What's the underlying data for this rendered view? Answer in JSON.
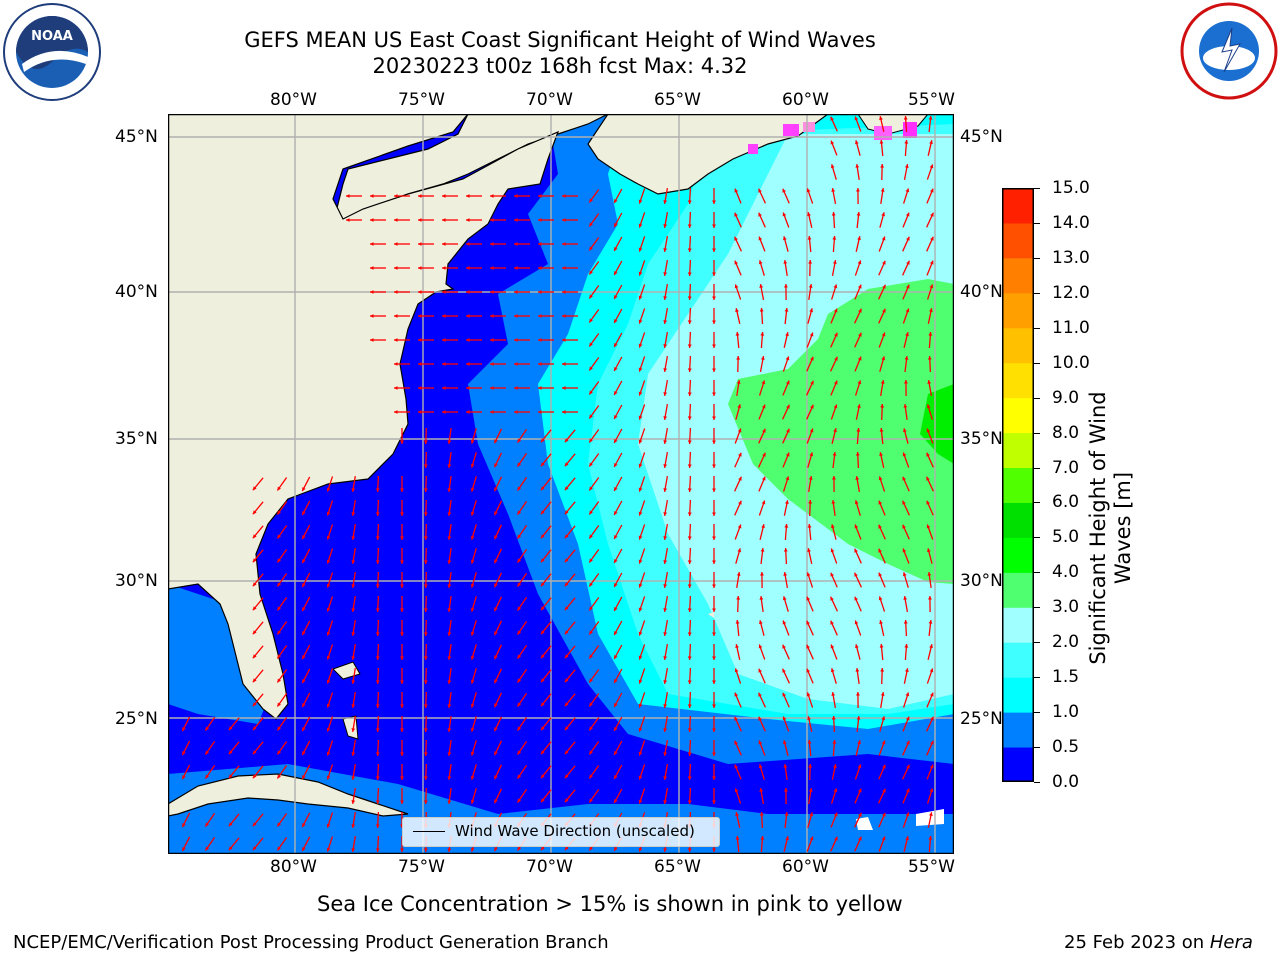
{
  "header": {
    "title_line1": "GEFS MEAN US East Coast Significant Height of Wind Waves",
    "title_line2": "20230223 t00z 168h fcst   Max: 4.32"
  },
  "logos": {
    "left": "noaa-logo",
    "right": "national-weather-service-logo"
  },
  "map": {
    "lon_labels": [
      "80°W",
      "75°W",
      "70°W",
      "65°W",
      "60°W",
      "55°W"
    ],
    "lat_labels": [
      "45°N",
      "40°N",
      "35°N",
      "30°N",
      "25°N"
    ],
    "lon_range": [
      -85,
      -54.5
    ],
    "lat_range": [
      20.5,
      46
    ],
    "land_color": "#efefdd",
    "arrow_color": "#ff0000",
    "legend_label": "Wind Wave Direction (unscaled)"
  },
  "colorbar": {
    "label": "Significant Height of Wind Waves [m]",
    "ticks": [
      "15.0",
      "14.0",
      "13.0",
      "12.0",
      "11.0",
      "10.0",
      "9.0",
      "8.0",
      "7.0",
      "6.0",
      "5.0",
      "4.0",
      "3.0",
      "2.0",
      "1.5",
      "1.0",
      "0.5",
      "0.0"
    ],
    "colors_bottom_to_top": [
      "#0000ff",
      "#0080ff",
      "#00ffff",
      "#40ffff",
      "#a0ffff",
      "#50ff70",
      "#00ff00",
      "#00e000",
      "#50ff00",
      "#c0ff00",
      "#ffff00",
      "#ffe000",
      "#ffc000",
      "#ffa000",
      "#ff8000",
      "#ff5000",
      "#ff2000"
    ]
  },
  "footer": {
    "note": "Sea Ice Concentration > 15% is shown in pink to yellow",
    "left": "NCEP/EMC/Verification Post Processing Product Generation Branch",
    "right_date": "25 Feb 2023 on ",
    "right_machine": "Hera"
  }
}
